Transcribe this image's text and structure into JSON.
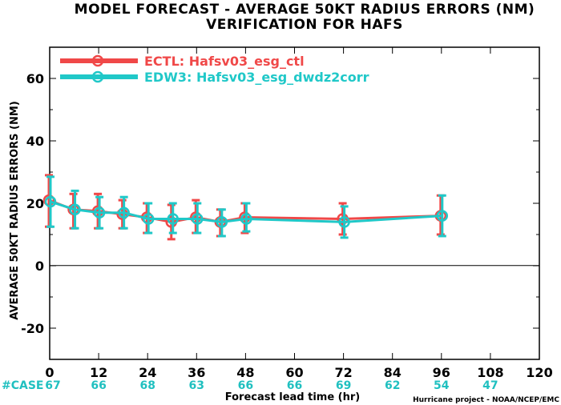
{
  "chart_data": {
    "type": "line",
    "title": "MODEL FORECAST - AVERAGE 50KT RADIUS ERRORS (NM)",
    "subtitle": "VERIFICATION FOR HAFS",
    "ylabel": "AVERAGE 50KT RADIUS ERRORS (NM)",
    "xlabel": "Forecast lead time (hr)",
    "credit": "Hurricane project - NOAA/NCEP/EMC",
    "xlim": [
      0,
      120
    ],
    "ylim": [
      -30,
      70
    ],
    "xticks": [
      0,
      12,
      24,
      36,
      48,
      60,
      72,
      84,
      96,
      108,
      120
    ],
    "yticks": [
      -20,
      0,
      20,
      40,
      60
    ],
    "grid": false,
    "legend_position": "top-left",
    "case_label": "#CASE",
    "cases": [
      {
        "x": 0,
        "n": "67"
      },
      {
        "x": 12,
        "n": "66"
      },
      {
        "x": 24,
        "n": "68"
      },
      {
        "x": 36,
        "n": "63"
      },
      {
        "x": 48,
        "n": "66"
      },
      {
        "x": 60,
        "n": "66"
      },
      {
        "x": 72,
        "n": "69"
      },
      {
        "x": 84,
        "n": "62"
      },
      {
        "x": 96,
        "n": "54"
      },
      {
        "x": 108,
        "n": "47"
      }
    ],
    "series": [
      {
        "name": "ECTL: Hafsv03_esg_ctl",
        "color": "#f04848",
        "x": [
          0,
          6,
          12,
          18,
          24,
          30,
          36,
          42,
          48,
          72,
          96
        ],
        "y": [
          21,
          18,
          17.5,
          16.5,
          15.5,
          14,
          15.5,
          14,
          15.5,
          15,
          16
        ],
        "low": [
          12.5,
          12,
          12,
          12,
          10.5,
          8.5,
          10.5,
          9.5,
          10.5,
          10,
          10
        ],
        "high": [
          29,
          23,
          23,
          21,
          20,
          19.5,
          21,
          18,
          20,
          20,
          22.5
        ]
      },
      {
        "name": "EDW3: Hafsv03_esg_dwdz2corr",
        "color": "#20c8c8",
        "x": [
          0,
          6,
          12,
          18,
          24,
          30,
          36,
          42,
          48,
          72,
          96
        ],
        "y": [
          20.5,
          18,
          17,
          17,
          15,
          15,
          15,
          14,
          15,
          14,
          16
        ],
        "low": [
          12.5,
          12,
          12,
          12,
          10.5,
          10.5,
          10.5,
          9.5,
          11,
          9,
          9.5
        ],
        "high": [
          28.5,
          24,
          22,
          22,
          20,
          20,
          20,
          18,
          20,
          19,
          22.5
        ]
      }
    ]
  }
}
